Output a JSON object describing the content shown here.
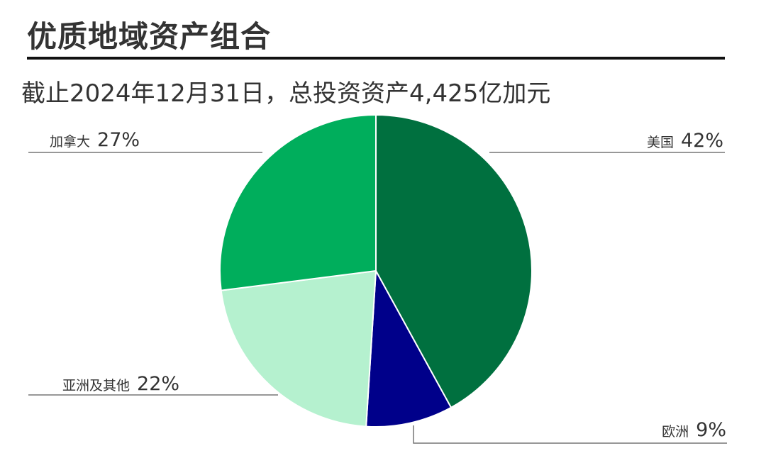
{
  "title": "优质地域资产组合",
  "subtitle": "截止2024年12月31日，总投资资产4,425亿加元",
  "chart_data": {
    "type": "pie",
    "title": "优质地域资产组合",
    "subtitle": "截止2024年12月31日，总投资资产4,425亿加元",
    "start": "top",
    "direction": "clockwise",
    "slices": [
      {
        "label": "美国",
        "value": 42,
        "value_label": "42%",
        "color": "#00703f"
      },
      {
        "label": "欧洲",
        "value": 9,
        "value_label": "9%",
        "color": "#00008a"
      },
      {
        "label": "亚洲及其他",
        "value": 22,
        "value_label": "22%",
        "color": "#b5f1cf"
      },
      {
        "label": "加拿大",
        "value": 27,
        "value_label": "27%",
        "color": "#00ae5c"
      }
    ]
  }
}
